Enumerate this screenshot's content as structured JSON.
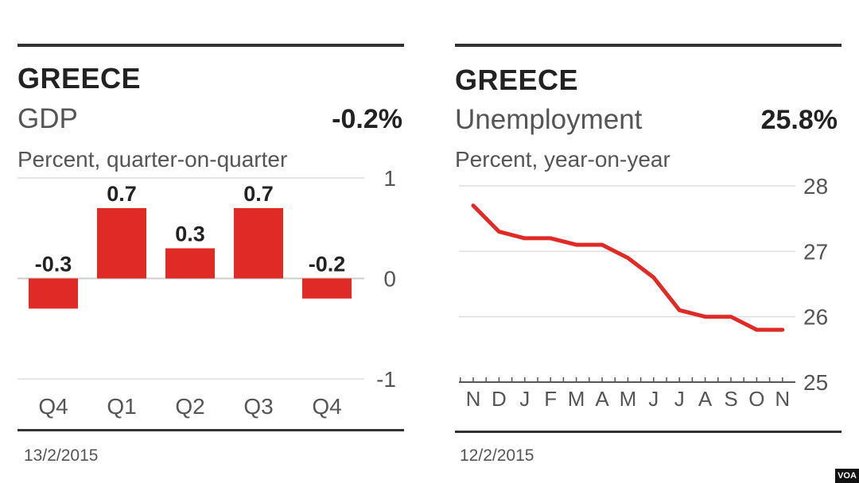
{
  "left": {
    "title": "GREECE",
    "metric": "GDP",
    "headline_value": "-0.2%",
    "unit": "Percent, quarter-on-quarter",
    "date": "13/2/2015"
  },
  "right": {
    "title": "GREECE",
    "metric": "Unemployment",
    "headline_value": "25.8%",
    "unit": "Percent, year-on-year",
    "date": "12/2/2015"
  },
  "watermark": "VOA",
  "chart_data": [
    {
      "type": "bar",
      "title": "GREECE",
      "subtitle": "GDP",
      "ylabel": "Percent, quarter-on-quarter",
      "categories": [
        "Q4",
        "Q1",
        "Q2",
        "Q3",
        "Q4"
      ],
      "values": [
        -0.3,
        0.7,
        0.3,
        0.7,
        -0.2
      ],
      "data_labels": [
        "-0.3",
        "0.7",
        "0.3",
        "0.7",
        "-0.2"
      ],
      "ylim": [
        -1,
        1
      ],
      "yticks": [
        1,
        0,
        -1
      ],
      "ytick_labels": [
        "1",
        "0",
        "-1"
      ],
      "grid": true,
      "color": "#e02a26"
    },
    {
      "type": "line",
      "title": "GREECE",
      "subtitle": "Unemployment",
      "ylabel": "Percent, year-on-year",
      "x": [
        "N",
        "D",
        "J",
        "F",
        "M",
        "A",
        "M",
        "J",
        "J",
        "A",
        "S",
        "O",
        "N"
      ],
      "values": [
        27.7,
        27.3,
        27.2,
        27.2,
        27.1,
        27.1,
        26.9,
        26.6,
        26.1,
        26.0,
        26.0,
        25.8,
        25.8
      ],
      "ylim": [
        25,
        28
      ],
      "yticks": [
        28,
        27,
        26,
        25
      ],
      "ytick_labels": [
        "28",
        "27",
        "26",
        "25"
      ],
      "grid": true,
      "color": "#e02a26"
    }
  ]
}
